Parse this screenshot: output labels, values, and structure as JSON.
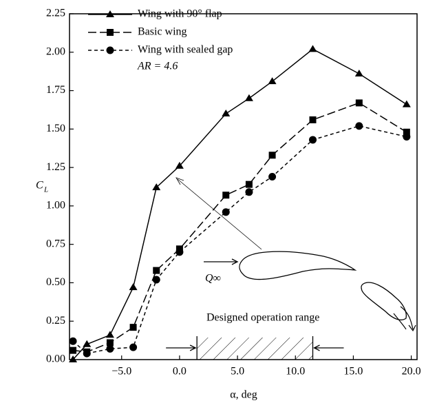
{
  "chart_data": {
    "type": "line",
    "x_label": "α, deg",
    "y_label": {
      "symbol": "C",
      "subscript": "L"
    },
    "xlim": [
      -9.5,
      20.5
    ],
    "ylim": [
      0,
      2.25
    ],
    "xticks": [
      {
        "value": -5,
        "label": "−5.0"
      },
      {
        "value": 0,
        "label": "0.0"
      },
      {
        "value": 5,
        "label": "5.0"
      },
      {
        "value": 10,
        "label": "10.0"
      },
      {
        "value": 15,
        "label": "15.0"
      },
      {
        "value": 20,
        "label": "20.0"
      }
    ],
    "yticks": [
      {
        "value": 0,
        "label": "0.00"
      },
      {
        "value": 0.25,
        "label": "0.25"
      },
      {
        "value": 0.5,
        "label": "0.50"
      },
      {
        "value": 0.75,
        "label": "0.75"
      },
      {
        "value": 1,
        "label": "1.00"
      },
      {
        "value": 1.25,
        "label": "1.25"
      },
      {
        "value": 1.5,
        "label": "1.50"
      },
      {
        "value": 1.75,
        "label": "1.75"
      },
      {
        "value": 2,
        "label": "2.00"
      },
      {
        "value": 2.25,
        "label": "2.25"
      }
    ],
    "grid": false,
    "legend": "upper left",
    "x": [
      -9.2,
      -8,
      -6,
      -4,
      -2,
      0,
      4,
      6,
      8,
      11.5,
      15.5,
      19.6
    ],
    "series": [
      {
        "name": "Wing with 90° flap",
        "color": "#000000",
        "marker": "triangle",
        "line_style": "solid",
        "values": [
          0,
          0.1,
          0.16,
          0.47,
          1.12,
          1.26,
          1.6,
          1.7,
          1.81,
          2.02,
          1.86,
          1.66
        ]
      },
      {
        "name": "Basic wing",
        "color": "#000000",
        "marker": "square",
        "line_style": "dashed",
        "values": [
          0.06,
          0.05,
          0.11,
          0.21,
          0.58,
          0.72,
          1.07,
          1.14,
          1.33,
          1.56,
          1.67,
          1.48
        ]
      },
      {
        "name": "Wing with sealed gap",
        "color": "#000000",
        "marker": "circle",
        "line_style": "dotted",
        "values": [
          0.12,
          0.04,
          0.07,
          0.08,
          0.52,
          0.7,
          0.96,
          1.09,
          1.19,
          1.43,
          1.52,
          1.45
        ]
      }
    ],
    "aspect_ratio_note": "AR = 4.6",
    "freestream_label": "Q∞",
    "operation_range_label": "Designed operation range",
    "operation_range": [
      1.5,
      11.5
    ]
  }
}
